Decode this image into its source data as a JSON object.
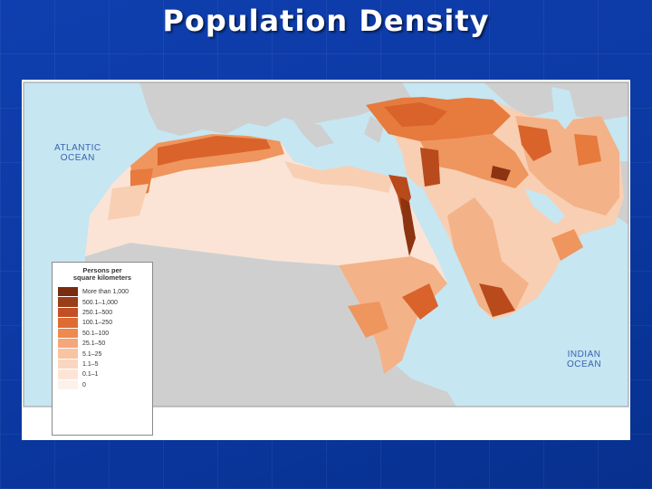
{
  "slide": {
    "title": "Population Density"
  },
  "map": {
    "ocean_labels": [
      {
        "id": "atlantic",
        "line1": "ATLANTIC",
        "line2": "OCEAN"
      },
      {
        "id": "indian",
        "line1": "INDIAN",
        "line2": "OCEAN"
      }
    ],
    "colors": {
      "water": "#c6e6f2",
      "outside_land": "#cfcfcf",
      "d1": "#fbe4d6",
      "d2": "#f8cfb3",
      "d3": "#f4b288",
      "d4": "#ef955e",
      "d5": "#e77a3d",
      "d6": "#d9632a",
      "d7": "#b84a1c",
      "d8": "#8c3312"
    },
    "legend": {
      "title_line1": "Persons per",
      "title_line2": "square kilometers",
      "items": [
        {
          "label": "More than 1,000",
          "color": "#7a2c10"
        },
        {
          "label": "500.1–1,000",
          "color": "#9a3d18"
        },
        {
          "label": "250.1–500",
          "color": "#c25024"
        },
        {
          "label": "100.1–250",
          "color": "#de6c32"
        },
        {
          "label": "50.1–100",
          "color": "#f0894e"
        },
        {
          "label": "25.1–50",
          "color": "#f5a67a"
        },
        {
          "label": "5.1–25",
          "color": "#f8c4a2"
        },
        {
          "label": "1.1–5",
          "color": "#fad6c0"
        },
        {
          "label": "0.1–1",
          "color": "#fce5d7"
        },
        {
          "label": "0",
          "color": "#fdf2ea"
        }
      ]
    }
  }
}
